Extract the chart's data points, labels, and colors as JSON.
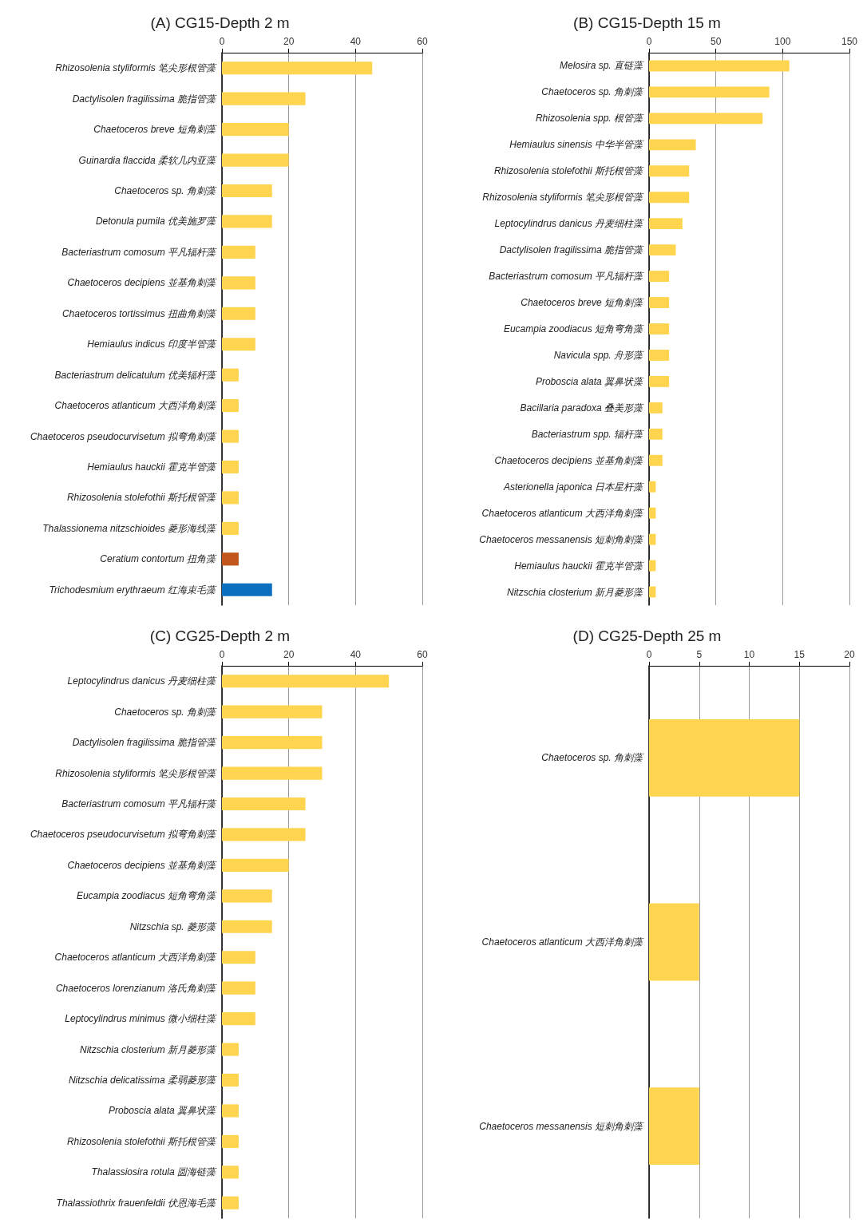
{
  "chart_data": [
    {
      "type": "bar",
      "orientation": "horizontal",
      "title": "(A) CG15-Depth 2 m",
      "categories": [
        "Rhizosolenia styliformis 笔尖形根管藻",
        "Dactylisolen fragilissima 脆指管藻",
        "Chaetoceros breve 短角刺藻",
        "Guinardia flaccida 柔软几内亚藻",
        "Chaetoceros sp. 角刺藻",
        "Detonula pumila 优美施罗藻",
        "Bacteriastrum comosum 平凡辐杆藻",
        "Chaetoceros decipiens 並基角刺藻",
        "Chaetoceros tortissimus 扭曲角刺藻",
        "Hemiaulus indicus 印度半管藻",
        "Bacteriastrum delicatulum 优美辐杆藻",
        "Chaetoceros atlanticum 大西洋角刺藻",
        "Chaetoceros pseudocurvisetum 拟弯角刺藻",
        "Hemiaulus hauckii 霍克半管藻",
        "Rhizosolenia stolefothii 斯托根管藻",
        "Thalassionema nitzschioides 菱形海线藻",
        "Ceratium contortum 扭角藻",
        "Trichodesmium erythraeum 红海束毛藻"
      ],
      "values": [
        45,
        25,
        20,
        20,
        15,
        15,
        10,
        10,
        10,
        10,
        5,
        5,
        5,
        5,
        5,
        5,
        5,
        15
      ],
      "colors": [
        "#ffd44f",
        "#ffd44f",
        "#ffd44f",
        "#ffd44f",
        "#ffd44f",
        "#ffd44f",
        "#ffd44f",
        "#ffd44f",
        "#ffd44f",
        "#ffd44f",
        "#ffd44f",
        "#ffd44f",
        "#ffd44f",
        "#ffd44f",
        "#ffd44f",
        "#ffd44f",
        "#c0561b",
        "#0b6fc0"
      ],
      "xlim": [
        0,
        60
      ],
      "xticks": [
        0,
        20,
        40,
        60
      ],
      "grid": "x"
    },
    {
      "type": "bar",
      "orientation": "horizontal",
      "title": "(B) CG15-Depth 15 m",
      "categories": [
        "Melosira sp. 直链藻",
        "Chaetoceros sp. 角刺藻",
        "Rhizosolenia spp. 根管藻",
        "Hemiaulus sinensis 中华半管藻",
        "Rhizosolenia stolefothii 斯托根管藻",
        "Rhizosolenia styliformis 笔尖形根管藻",
        "Leptocylindrus danicus 丹麦细柱藻",
        "Dactylisolen fragilissima 脆指管藻",
        "Bacteriastrum comosum 平凡辐杆藻",
        "Chaetoceros breve 短角刺藻",
        "Eucampia zoodiacus 短角弯角藻",
        "Navicula spp. 舟形藻",
        "Proboscia alata 翼鼻状藻",
        "Bacillaria paradoxa 叠美形藻",
        "Bacteriastrum spp. 辐杆藻",
        "Chaetoceros decipiens 並基角刺藻",
        "Asterionella japonica 日本星杆藻",
        "Chaetoceros atlanticum 大西洋角刺藻",
        "Chaetoceros messanensis 短刺角刺藻",
        "Hemiaulus hauckii 霍克半管藻",
        "Nitzschia closterium 新月菱形藻"
      ],
      "values": [
        105,
        90,
        85,
        35,
        30,
        30,
        25,
        20,
        15,
        15,
        15,
        15,
        15,
        10,
        10,
        10,
        5,
        5,
        5,
        5,
        5
      ],
      "color": "#ffd44f",
      "xlim": [
        0,
        150
      ],
      "xticks": [
        0,
        50,
        100,
        150
      ],
      "grid": "x"
    },
    {
      "type": "bar",
      "orientation": "horizontal",
      "title": "(C) CG25-Depth 2 m",
      "categories": [
        "Leptocylindrus danicus 丹麦细柱藻",
        "Chaetoceros sp. 角刺藻",
        "Dactylisolen fragilissima 脆指管藻",
        "Rhizosolenia styliformis 笔尖形根管藻",
        "Bacteriastrum comosum 平凡辐杆藻",
        "Chaetoceros pseudocurvisetum 拟弯角刺藻",
        "Chaetoceros decipiens 並基角刺藻",
        "Eucampia zoodiacus 短角弯角藻",
        "Nitzschia sp. 菱形藻",
        "Chaetoceros atlanticum 大西洋角刺藻",
        "Chaetoceros lorenzianum 洛氏角刺藻",
        "Leptocylindrus minimus 微小细柱藻",
        "Nitzschia closterium 新月菱形藻",
        "Nitzschia delicatissima 柔弱菱形藻",
        "Proboscia alata 翼鼻状藻",
        "Rhizosolenia stolefothii 斯托根管藻",
        "Thalassiosira rotula 圆海链藻",
        "Thalassiothrix frauenfeldii 伏恩海毛藻"
      ],
      "values": [
        50,
        30,
        30,
        30,
        25,
        25,
        20,
        15,
        15,
        10,
        10,
        10,
        5,
        5,
        5,
        5,
        5,
        5
      ],
      "color": "#ffd44f",
      "xlim": [
        0,
        60
      ],
      "xticks": [
        0,
        20,
        40,
        60
      ],
      "grid": "x"
    },
    {
      "type": "bar",
      "orientation": "horizontal",
      "title": "(D) CG25-Depth 25 m",
      "categories": [
        "Chaetoceros sp. 角刺藻",
        "Chaetoceros atlanticum 大西洋角刺藻",
        "Chaetoceros messanensis 短刺角刺藻"
      ],
      "values": [
        15,
        5,
        5
      ],
      "color": "#ffd44f",
      "xlim": [
        0,
        20
      ],
      "xticks": [
        0,
        5,
        10,
        15,
        20
      ],
      "grid": "x"
    }
  ]
}
